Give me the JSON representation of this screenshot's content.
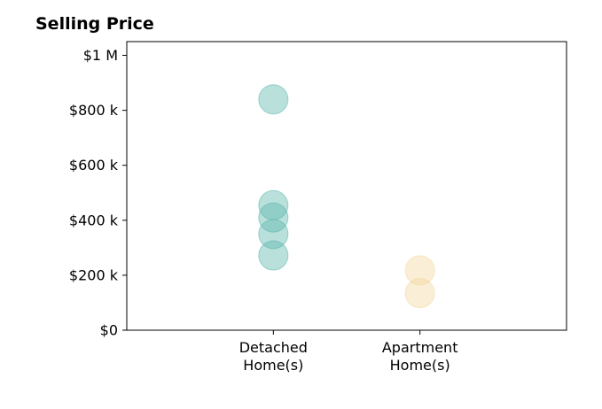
{
  "chart_data": {
    "type": "scatter",
    "title": "Selling Price",
    "xlabel": "",
    "ylabel": "",
    "categories": [
      "Detached\nHome(s)",
      "Apartment\nHome(s)"
    ],
    "xlim": [
      0,
      3
    ],
    "ylim": [
      0,
      1050000
    ],
    "yticks": [
      0,
      200000,
      400000,
      600000,
      800000,
      1000000
    ],
    "ytick_labels": [
      "$0",
      "$200 k",
      "$400 k",
      "$600 k",
      "$800 k",
      "$1 M"
    ],
    "grid": false,
    "series": [
      {
        "color": "#5ab4ac",
        "category": 0,
        "values": [
          840000,
          455000,
          410000,
          350000,
          272000
        ]
      },
      {
        "color": "#f2d79e",
        "category": 1,
        "values": [
          218000,
          135000
        ]
      }
    ]
  }
}
